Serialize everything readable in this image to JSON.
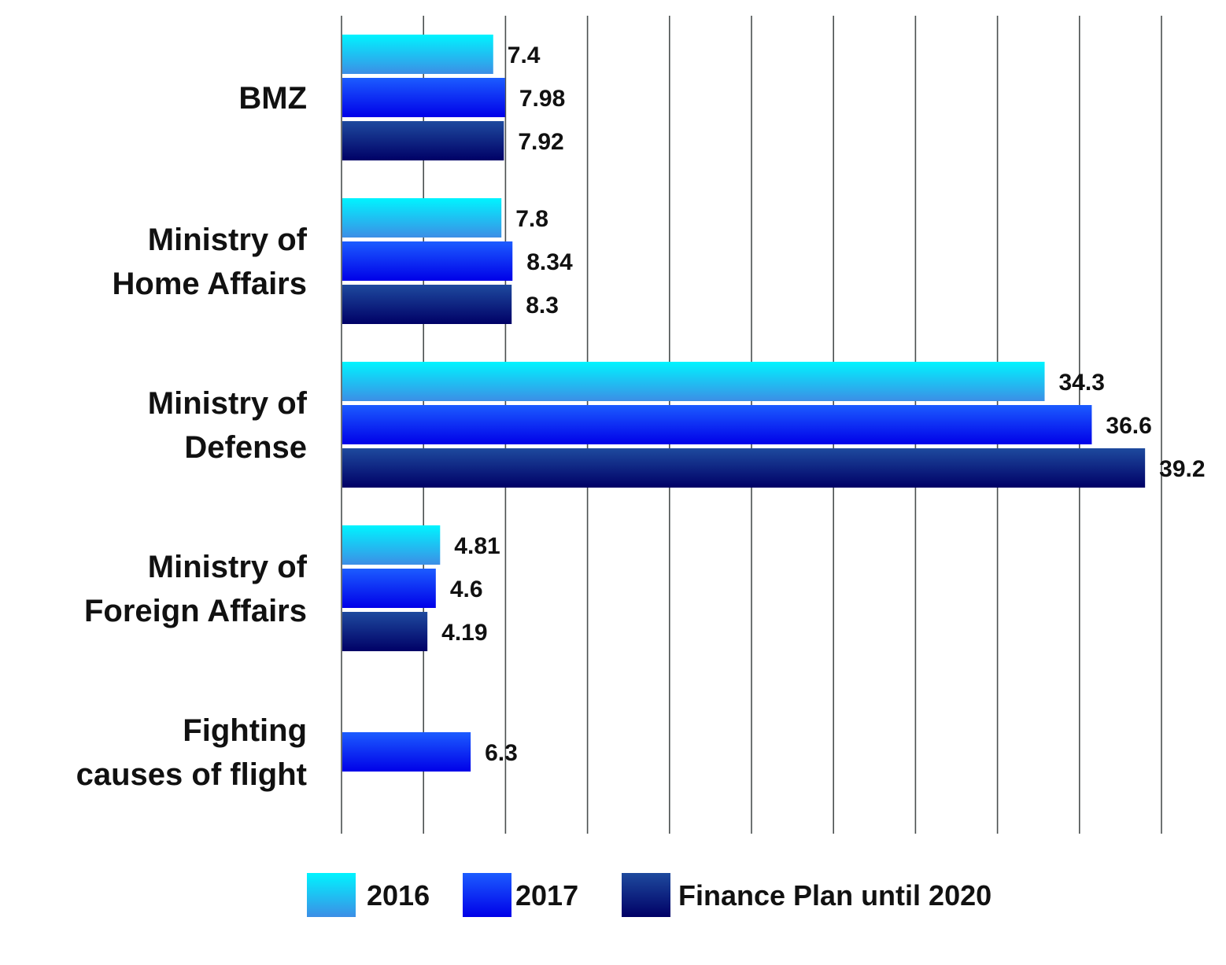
{
  "chart_data": {
    "type": "bar",
    "orientation": "horizontal",
    "categories": [
      [
        "BMZ"
      ],
      [
        "Ministry of",
        "Home Affairs"
      ],
      [
        "Ministry of",
        "Defense"
      ],
      [
        "Ministry of",
        "Foreign Affairs"
      ],
      [
        "Fighting",
        "causes of flight"
      ]
    ],
    "series": [
      {
        "name": "2016",
        "values": [
          7.4,
          7.8,
          34.3,
          4.81,
          null
        ],
        "labels": [
          "7.4",
          "7.8",
          "34.3",
          "4.81",
          ""
        ]
      },
      {
        "name": "2017",
        "values": [
          7.98,
          8.34,
          36.6,
          4.6,
          6.3
        ],
        "labels": [
          "7.98",
          "8.34",
          "36.6",
          "4.6",
          "6.3"
        ]
      },
      {
        "name": "Finance Plan until 2020",
        "values": [
          7.92,
          8.3,
          39.2,
          4.19,
          null
        ],
        "labels": [
          "7.92",
          "8.3",
          "39.2",
          "4.19",
          ""
        ]
      }
    ],
    "xlim": [
      0,
      40
    ],
    "grid_step": 4,
    "grid": true,
    "legend_position": "bottom",
    "title": "",
    "xlabel": "",
    "ylabel": "",
    "colors": {
      "2016": {
        "top": "#00f4ff",
        "bottom": "#3c8ee6"
      },
      "2017": {
        "top": "#1c5cff",
        "bottom": "#0000e8"
      },
      "Finance Plan until 2020": {
        "top": "#1e4a9e",
        "bottom": "#000066"
      }
    }
  }
}
